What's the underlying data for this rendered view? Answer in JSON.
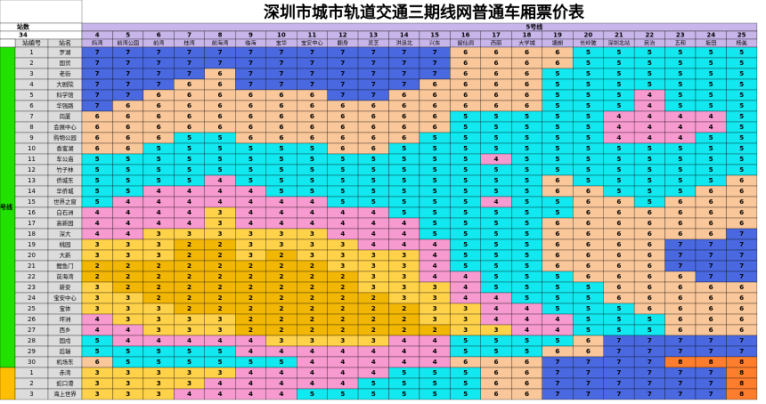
{
  "title": "深圳市城市轨道交通三期线网普通车厢票价表",
  "corner": {
    "label_1": "站数",
    "label_2": "34",
    "label_3": "路号",
    "station_no_header": "站编号",
    "station_name_header": "站名"
  },
  "line_labels": {
    "left_line": "号线",
    "top_line": "5号线"
  },
  "columns": [
    {
      "no": "4",
      "name": "妈湾"
    },
    {
      "no": "5",
      "name": "前湾公园"
    },
    {
      "no": "6",
      "name": "前湾"
    },
    {
      "no": "7",
      "name": "桂湾"
    },
    {
      "no": "8",
      "name": "前海湾"
    },
    {
      "no": "9",
      "name": "临海"
    },
    {
      "no": "10",
      "name": "宝华"
    },
    {
      "no": "11",
      "name": "宝安中心"
    },
    {
      "no": "12",
      "name": "翻身"
    },
    {
      "no": "13",
      "name": "灵芝"
    },
    {
      "no": "14",
      "name": "洪浪北"
    },
    {
      "no": "15",
      "name": "兴东"
    },
    {
      "no": "16",
      "name": "留仙洞"
    },
    {
      "no": "17",
      "name": "西丽"
    },
    {
      "no": "18",
      "name": "大学城"
    },
    {
      "no": "19",
      "name": "塘朗"
    },
    {
      "no": "20",
      "name": "长岭陂"
    },
    {
      "no": "21",
      "name": "深圳北站"
    },
    {
      "no": "22",
      "name": "民治"
    },
    {
      "no": "23",
      "name": "五和"
    },
    {
      "no": "24",
      "name": "坂田"
    },
    {
      "no": "25",
      "name": "杨美"
    }
  ],
  "rows": [
    {
      "no": "1",
      "name": "罗湖",
      "fares": [
        7,
        7,
        7,
        7,
        7,
        7,
        7,
        7,
        7,
        7,
        7,
        7,
        6,
        6,
        6,
        6,
        5,
        5,
        5,
        5,
        5,
        5
      ]
    },
    {
      "no": "2",
      "name": "国贸",
      "fares": [
        7,
        7,
        7,
        7,
        7,
        7,
        7,
        7,
        7,
        7,
        7,
        7,
        6,
        6,
        6,
        6,
        5,
        5,
        5,
        5,
        5,
        5
      ]
    },
    {
      "no": "3",
      "name": "老街",
      "fares": [
        7,
        7,
        7,
        7,
        6,
        7,
        7,
        7,
        7,
        7,
        7,
        7,
        6,
        6,
        6,
        5,
        5,
        5,
        5,
        5,
        5,
        5
      ]
    },
    {
      "no": "4",
      "name": "大剧院",
      "fares": [
        7,
        7,
        7,
        6,
        6,
        7,
        7,
        7,
        7,
        7,
        7,
        6,
        6,
        6,
        6,
        5,
        5,
        5,
        5,
        5,
        5,
        5
      ]
    },
    {
      "no": "5",
      "name": "科学馆",
      "fares": [
        7,
        7,
        6,
        6,
        6,
        6,
        6,
        6,
        7,
        7,
        6,
        6,
        6,
        6,
        6,
        5,
        5,
        5,
        4,
        5,
        5,
        5
      ]
    },
    {
      "no": "6",
      "name": "华强路",
      "fares": [
        7,
        6,
        6,
        6,
        6,
        6,
        6,
        6,
        6,
        6,
        6,
        6,
        6,
        6,
        6,
        5,
        5,
        5,
        4,
        5,
        5,
        5
      ]
    },
    {
      "no": "7",
      "name": "岗厦",
      "fares": [
        6,
        6,
        6,
        6,
        6,
        6,
        6,
        6,
        6,
        6,
        6,
        6,
        5,
        5,
        5,
        5,
        5,
        4,
        4,
        4,
        4,
        5
      ]
    },
    {
      "no": "8",
      "name": "会展中心",
      "fares": [
        6,
        6,
        6,
        6,
        6,
        6,
        6,
        6,
        6,
        6,
        6,
        6,
        5,
        5,
        5,
        5,
        5,
        4,
        4,
        4,
        4,
        5
      ]
    },
    {
      "no": "9",
      "name": "购物公园",
      "fares": [
        6,
        6,
        6,
        5,
        5,
        6,
        6,
        6,
        6,
        6,
        6,
        5,
        5,
        5,
        5,
        5,
        5,
        4,
        4,
        4,
        5,
        5
      ]
    },
    {
      "no": "10",
      "name": "香蜜湖",
      "fares": [
        6,
        6,
        5,
        5,
        5,
        5,
        5,
        5,
        6,
        6,
        5,
        5,
        5,
        5,
        5,
        5,
        5,
        5,
        5,
        5,
        5,
        5
      ]
    },
    {
      "no": "11",
      "name": "车公庙",
      "fares": [
        5,
        5,
        5,
        5,
        5,
        5,
        5,
        5,
        5,
        5,
        5,
        5,
        5,
        4,
        5,
        5,
        5,
        5,
        5,
        5,
        5,
        5
      ]
    },
    {
      "no": "12",
      "name": "竹子林",
      "fares": [
        5,
        5,
        5,
        5,
        5,
        5,
        5,
        5,
        5,
        5,
        5,
        5,
        5,
        5,
        5,
        5,
        5,
        5,
        5,
        5,
        5,
        5
      ]
    },
    {
      "no": "13",
      "name": "侨城东",
      "fares": [
        5,
        5,
        5,
        5,
        4,
        5,
        5,
        5,
        5,
        5,
        5,
        5,
        5,
        5,
        5,
        6,
        5,
        5,
        5,
        5,
        5,
        6
      ]
    },
    {
      "no": "14",
      "name": "华侨城",
      "fares": [
        5,
        5,
        4,
        4,
        4,
        4,
        5,
        5,
        5,
        5,
        5,
        5,
        5,
        5,
        5,
        6,
        6,
        5,
        5,
        5,
        6,
        6
      ]
    },
    {
      "no": "15",
      "name": "世界之窗",
      "fares": [
        5,
        4,
        4,
        4,
        4,
        4,
        4,
        4,
        5,
        5,
        5,
        5,
        5,
        4,
        5,
        5,
        6,
        6,
        5,
        6,
        6,
        6
      ]
    },
    {
      "no": "16",
      "name": "白石洲",
      "fares": [
        4,
        4,
        4,
        4,
        3,
        4,
        4,
        4,
        4,
        4,
        5,
        5,
        5,
        5,
        5,
        5,
        6,
        6,
        6,
        6,
        6,
        6
      ]
    },
    {
      "no": "17",
      "name": "高新园",
      "fares": [
        4,
        4,
        4,
        4,
        3,
        4,
        4,
        4,
        4,
        4,
        4,
        5,
        5,
        5,
        5,
        6,
        6,
        6,
        6,
        6,
        6,
        6
      ]
    },
    {
      "no": "18",
      "name": "深大",
      "fares": [
        4,
        4,
        3,
        3,
        3,
        3,
        3,
        3,
        4,
        4,
        4,
        5,
        5,
        5,
        5,
        6,
        6,
        6,
        6,
        6,
        6,
        7
      ]
    },
    {
      "no": "19",
      "name": "桃园",
      "fares": [
        3,
        3,
        3,
        2,
        2,
        3,
        3,
        3,
        3,
        4,
        4,
        4,
        5,
        5,
        5,
        6,
        6,
        6,
        6,
        7,
        7,
        7
      ]
    },
    {
      "no": "20",
      "name": "大新",
      "fares": [
        3,
        3,
        3,
        2,
        2,
        3,
        2,
        3,
        3,
        3,
        3,
        4,
        5,
        5,
        5,
        6,
        6,
        6,
        6,
        7,
        7,
        7
      ]
    },
    {
      "no": "21",
      "name": "鲤鱼门",
      "fares": [
        2,
        2,
        2,
        2,
        2,
        2,
        2,
        2,
        3,
        3,
        3,
        4,
        5,
        5,
        5,
        6,
        6,
        6,
        6,
        7,
        7,
        7
      ]
    },
    {
      "no": "22",
      "name": "前海湾",
      "fares": [
        2,
        2,
        2,
        2,
        2,
        2,
        2,
        2,
        2,
        3,
        3,
        4,
        4,
        5,
        5,
        5,
        6,
        6,
        6,
        6,
        7,
        7
      ]
    },
    {
      "no": "23",
      "name": "新安",
      "fares": [
        3,
        2,
        2,
        2,
        2,
        2,
        2,
        2,
        2,
        3,
        3,
        3,
        4,
        5,
        5,
        5,
        5,
        6,
        6,
        6,
        6,
        6
      ]
    },
    {
      "no": "24",
      "name": "宝安中心",
      "fares": [
        3,
        3,
        2,
        2,
        2,
        2,
        2,
        2,
        2,
        2,
        3,
        3,
        4,
        4,
        5,
        5,
        5,
        6,
        6,
        6,
        6,
        6
      ]
    },
    {
      "no": "25",
      "name": "宝体",
      "fares": [
        3,
        3,
        3,
        2,
        2,
        2,
        2,
        2,
        2,
        2,
        2,
        3,
        3,
        4,
        4,
        5,
        5,
        5,
        6,
        6,
        6,
        6
      ]
    },
    {
      "no": "26",
      "name": "坪洲",
      "fares": [
        4,
        3,
        3,
        3,
        3,
        2,
        2,
        2,
        2,
        2,
        2,
        3,
        3,
        4,
        4,
        4,
        5,
        5,
        5,
        6,
        6,
        6
      ]
    },
    {
      "no": "27",
      "name": "西乡",
      "fares": [
        4,
        4,
        3,
        3,
        3,
        2,
        2,
        2,
        2,
        2,
        2,
        2,
        3,
        3,
        4,
        4,
        5,
        5,
        5,
        6,
        6,
        6
      ]
    },
    {
      "no": "28",
      "name": "固戍",
      "fares": [
        5,
        4,
        4,
        4,
        4,
        4,
        3,
        3,
        3,
        3,
        4,
        4,
        5,
        5,
        5,
        5,
        6,
        7,
        7,
        7,
        7,
        7
      ]
    },
    {
      "no": "29",
      "name": "后瑞",
      "fares": [
        5,
        5,
        5,
        5,
        5,
        4,
        4,
        4,
        4,
        4,
        4,
        4,
        5,
        5,
        5,
        6,
        6,
        7,
        7,
        7,
        7,
        7
      ]
    },
    {
      "no": "30",
      "name": "机场东",
      "fares": [
        6,
        5,
        5,
        5,
        5,
        5,
        5,
        4,
        4,
        4,
        4,
        4,
        6,
        6,
        6,
        7,
        7,
        7,
        7,
        8,
        8,
        8
      ]
    },
    {
      "no": "1",
      "name": "赤湾",
      "fares": [
        3,
        3,
        3,
        3,
        3,
        4,
        4,
        4,
        4,
        4,
        5,
        5,
        5,
        6,
        6,
        7,
        7,
        7,
        7,
        7,
        7,
        8
      ]
    },
    {
      "no": "2",
      "name": "蛇口港",
      "fares": [
        3,
        3,
        3,
        3,
        4,
        4,
        4,
        4,
        4,
        5,
        5,
        5,
        5,
        6,
        6,
        7,
        7,
        7,
        7,
        7,
        7,
        8
      ]
    },
    {
      "no": "3",
      "name": "海上世界",
      "fares": [
        3,
        3,
        3,
        4,
        4,
        4,
        4,
        5,
        5,
        5,
        5,
        5,
        5,
        6,
        6,
        7,
        7,
        7,
        7,
        7,
        7,
        8
      ]
    }
  ],
  "colors": {
    "fare_2": "#f2b705",
    "fare_3": "#ffd24a",
    "fare_4": "#f79ad0",
    "fare_5": "#12e8ef",
    "fare_6": "#f9c79a",
    "fare_7": "#4a69e0",
    "fare_8": "#ff7e2e",
    "header_bg": "#c8b6ea",
    "station_no_bg": "#dcdcdc",
    "left_line_bg": "#22e000",
    "right_bottom_line_bg": "#ffbf00",
    "gridline": "#000000",
    "title_text": "#000000"
  }
}
